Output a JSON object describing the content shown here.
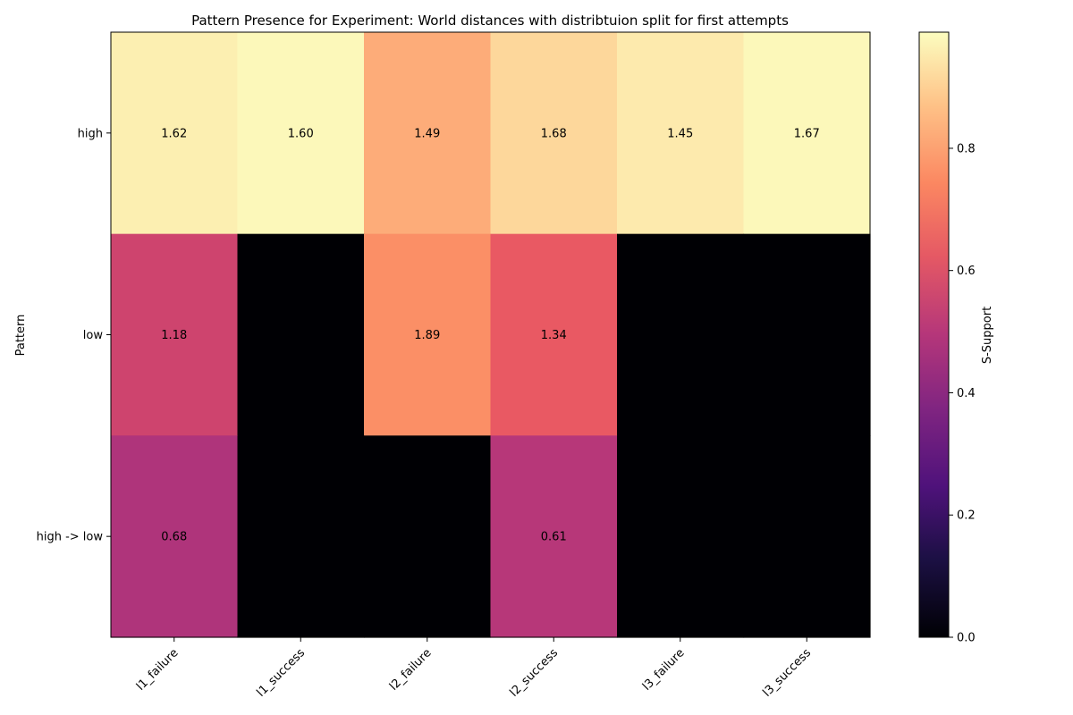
{
  "chart_data": {
    "type": "heatmap",
    "title": "Pattern Presence for Experiment: World distances with distribtuion split for first attempts",
    "xlabel": "",
    "ylabel": "Pattern",
    "columns": [
      "l1_failure",
      "l1_success",
      "l2_failure",
      "l2_success",
      "l3_failure",
      "l3_success"
    ],
    "rows": [
      "high",
      "low",
      "high -> low"
    ],
    "support": [
      [
        0.96,
        0.98,
        0.82,
        0.91,
        0.95,
        0.98
      ],
      [
        0.56,
        0.0,
        0.76,
        0.64,
        0.0,
        0.0
      ],
      [
        0.48,
        0.0,
        0.0,
        0.5,
        0.0,
        0.0
      ]
    ],
    "cell_labels": [
      [
        "1.62",
        "1.60",
        "1.49",
        "1.68",
        "1.45",
        "1.67"
      ],
      [
        "1.18",
        "",
        "1.89",
        "1.34",
        "",
        ""
      ],
      [
        "0.68",
        "",
        "",
        "0.61",
        "",
        ""
      ]
    ],
    "colorbar": {
      "label": "S-Support",
      "colormap": "magma",
      "range": [
        0.0,
        0.99
      ],
      "ticks": [
        "0.0",
        "0.2",
        "0.4",
        "0.6",
        "0.8"
      ],
      "tick_values": [
        0.0,
        0.2,
        0.4,
        0.6,
        0.8
      ]
    }
  }
}
